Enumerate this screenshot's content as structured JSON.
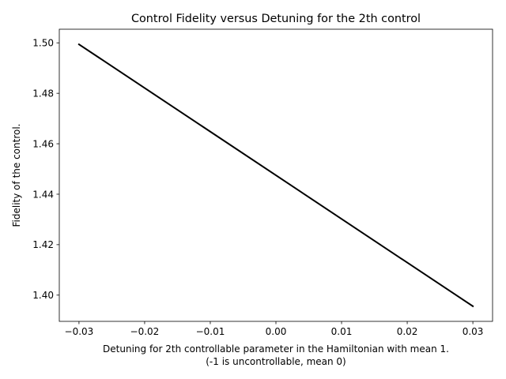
{
  "chart_data": {
    "type": "line",
    "title": "Control Fidelity versus Detuning for the 2th control",
    "xlabel": "Detuning for 2th controllable parameter in the Hamiltonian with mean 1.",
    "xlabel_line2": "(-1 is uncontrollable, mean 0)",
    "ylabel": "Fidelity of the control.",
    "xlim": [
      -0.033,
      0.033
    ],
    "ylim": [
      1.3896,
      1.5054
    ],
    "x_ticks": [
      -0.03,
      -0.02,
      -0.01,
      0.0,
      0.01,
      0.02,
      0.03
    ],
    "x_tick_labels": [
      "−0.03",
      "−0.02",
      "−0.01",
      "0.00",
      "0.01",
      "0.02",
      "0.03"
    ],
    "y_ticks": [
      1.4,
      1.42,
      1.44,
      1.46,
      1.48,
      1.5
    ],
    "y_tick_labels": [
      "1.40",
      "1.42",
      "1.44",
      "1.46",
      "1.48",
      "1.50"
    ],
    "grid": false,
    "legend": "none",
    "series": [
      {
        "color": "#000000",
        "x": [
          -0.03,
          0.03
        ],
        "y": [
          1.4994,
          1.3956
        ]
      }
    ]
  }
}
